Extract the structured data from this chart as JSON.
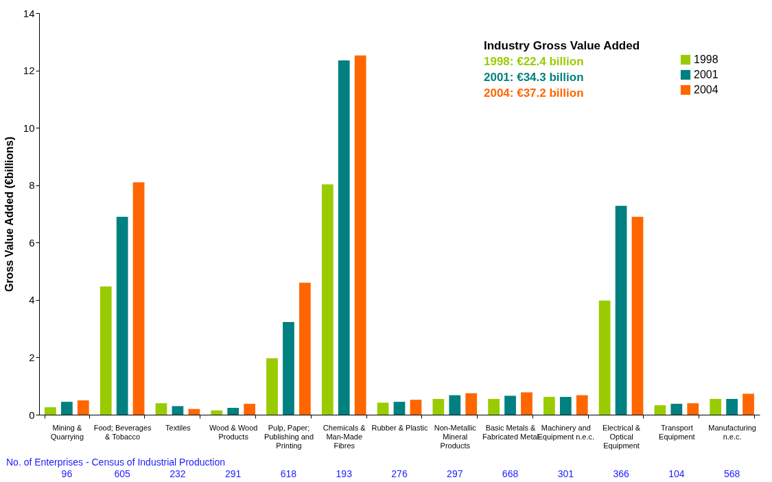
{
  "chart_data": {
    "type": "bar",
    "ylabel": "Gross Value Added (€billions)",
    "categories": [
      "Mining &\nQuarrying",
      "Food; Beverages\n& Tobacco",
      "Textiles",
      "Wood & Wood\nProducts",
      "Pulp, Paper;\nPublishing and\nPrinting",
      "Chemicals &\nMan-Made\nFibres",
      "Rubber & Plastic",
      "Non-Metallic\nMineral\nProducts",
      "Basic Metals &\nFabricated Metal",
      "Machinery and\nEquipment n.e.c.",
      "Electrical &\nOptical\nEquipment",
      "Transport\nEquipment",
      "Manufacturing\nn.e.c."
    ],
    "series": [
      {
        "name": "1998",
        "color": "#99cc00",
        "values": [
          0.26,
          4.47,
          0.4,
          0.15,
          1.97,
          8.03,
          0.42,
          0.55,
          0.55,
          0.62,
          3.98,
          0.33,
          0.55
        ]
      },
      {
        "name": "2001",
        "color": "#008080",
        "values": [
          0.45,
          6.9,
          0.3,
          0.24,
          3.23,
          12.35,
          0.45,
          0.68,
          0.66,
          0.62,
          7.28,
          0.38,
          0.55
        ]
      },
      {
        "name": "2004",
        "color": "#ff6600",
        "values": [
          0.5,
          8.1,
          0.2,
          0.38,
          4.6,
          12.52,
          0.52,
          0.75,
          0.78,
          0.68,
          6.9,
          0.4,
          0.73
        ]
      }
    ],
    "ylim": [
      0,
      14
    ],
    "yticks": [
      0,
      2,
      4,
      6,
      8,
      10,
      12,
      14
    ],
    "grid": false,
    "legend": "top right",
    "annotations": [
      "Industry Gross Value Added",
      "1998: €22.4 billion",
      "2001: €34.3 billion",
      "2004: €37.2 billion",
      "No. of Enterprises - Census of Industrial Production",
      "96",
      "605",
      "232",
      "291",
      "618",
      "193",
      "276",
      "297",
      "668",
      "301",
      "366",
      "104",
      "568"
    ]
  }
}
